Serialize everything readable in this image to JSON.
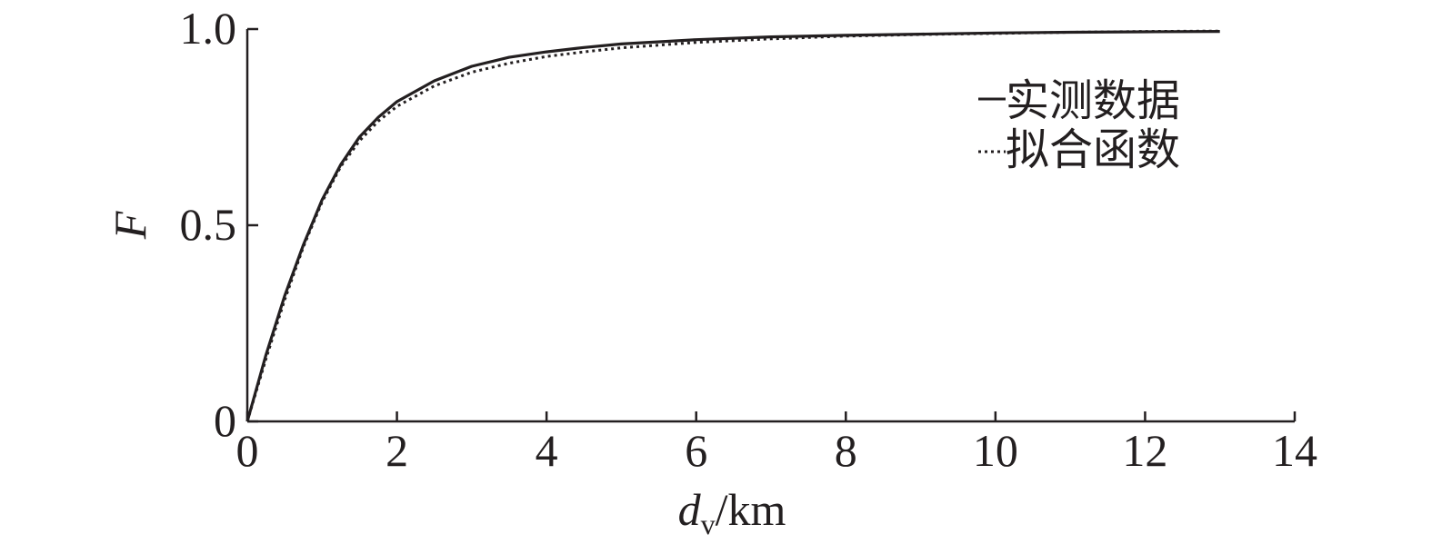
{
  "chart_data": {
    "type": "line",
    "xlabel": {
      "main": "d",
      "sub": "v",
      "unit": "/km"
    },
    "ylabel": "F",
    "xlim": [
      0,
      14
    ],
    "ylim": [
      0,
      1.0
    ],
    "x_ticks": [
      0,
      2,
      4,
      6,
      8,
      10,
      12,
      14
    ],
    "x_tick_labels": [
      "0",
      "2",
      "4",
      "6",
      "8",
      "10",
      "12",
      "14"
    ],
    "y_ticks": [
      0,
      0.5,
      1.0
    ],
    "y_tick_labels": [
      "0",
      "0.5",
      "1.0"
    ],
    "grid": false,
    "legend_position": "top-right",
    "series": [
      {
        "name": "实测数据",
        "style": "solid",
        "x": [
          0,
          0.25,
          0.5,
          0.75,
          1,
          1.25,
          1.5,
          1.75,
          2,
          2.5,
          3,
          3.5,
          4,
          4.5,
          5,
          6,
          7,
          8,
          9,
          10,
          11,
          12,
          13
        ],
        "y": [
          0,
          0.17,
          0.32,
          0.45,
          0.565,
          0.655,
          0.725,
          0.775,
          0.815,
          0.868,
          0.905,
          0.928,
          0.942,
          0.953,
          0.962,
          0.973,
          0.98,
          0.984,
          0.987,
          0.99,
          0.992,
          0.993,
          0.994
        ]
      },
      {
        "name": "拟合函数",
        "style": "dotted",
        "x": [
          0,
          0.25,
          0.5,
          0.75,
          1,
          1.25,
          1.5,
          1.75,
          2,
          2.5,
          3,
          3.5,
          4,
          4.5,
          5,
          6,
          7,
          8,
          9,
          10,
          11,
          12,
          13
        ],
        "y": [
          0,
          0.16,
          0.31,
          0.445,
          0.56,
          0.65,
          0.715,
          0.765,
          0.803,
          0.855,
          0.89,
          0.913,
          0.93,
          0.942,
          0.952,
          0.966,
          0.975,
          0.982,
          0.986,
          0.989,
          0.992,
          0.994,
          0.995
        ]
      }
    ]
  }
}
